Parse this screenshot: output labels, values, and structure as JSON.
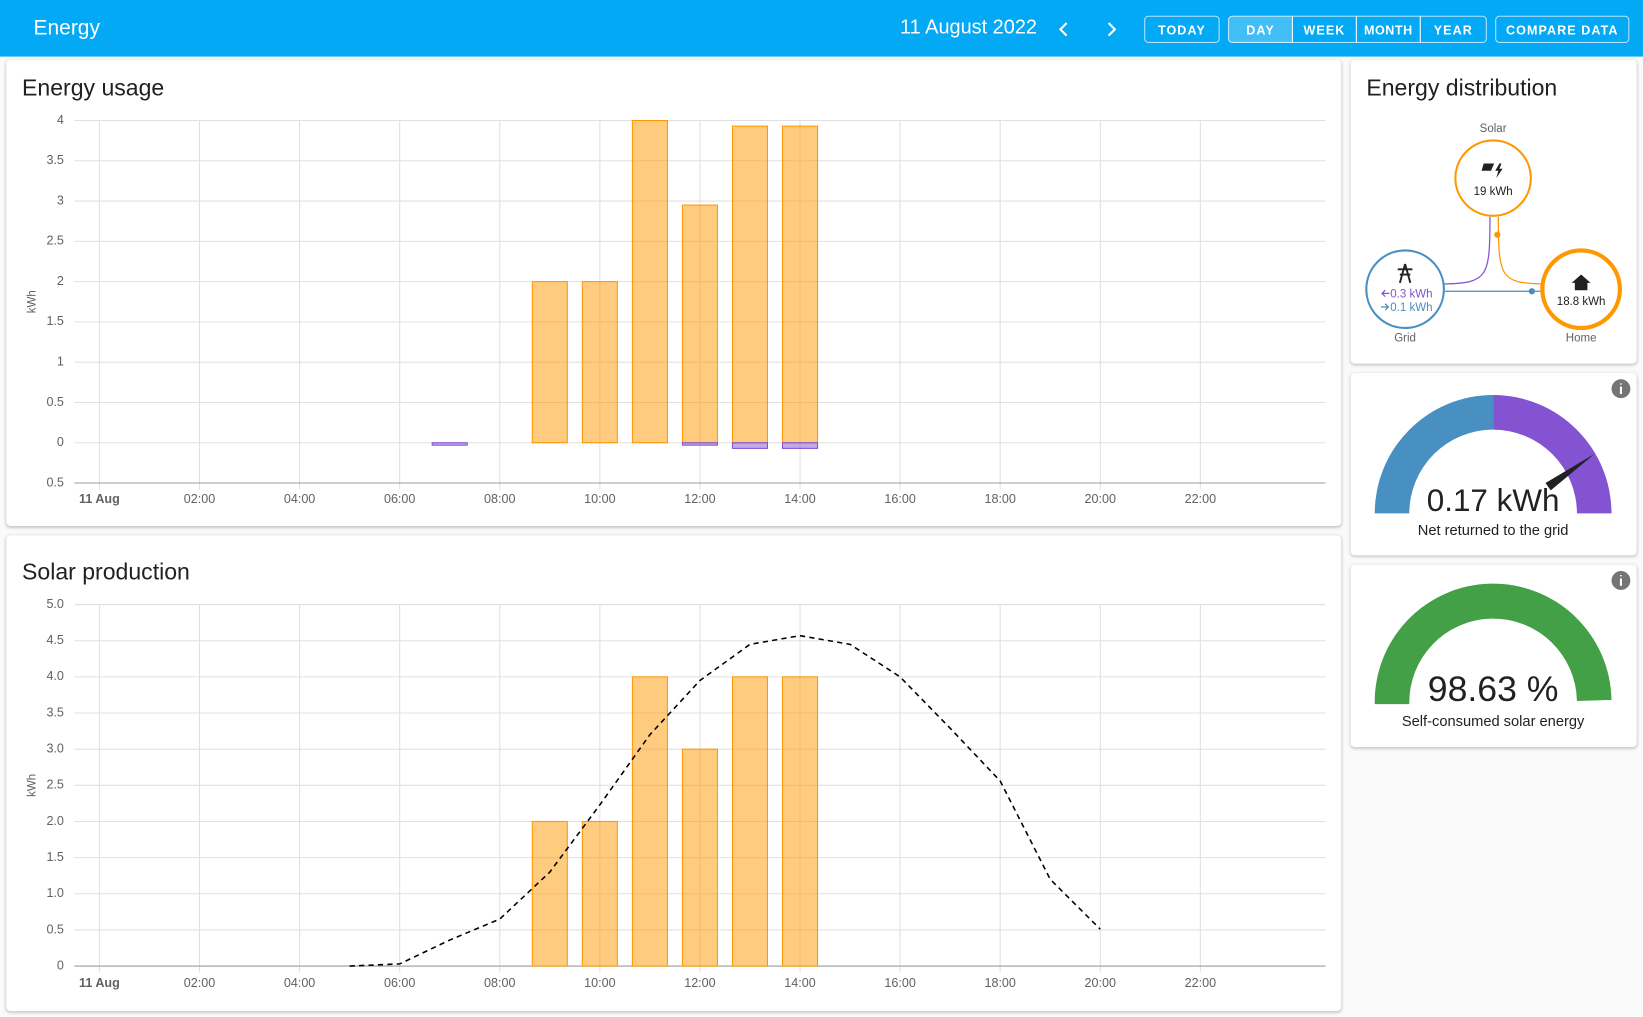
{
  "header": {
    "title": "Energy",
    "date": "11 August 2022",
    "buttons": [
      "TODAY",
      "DAY",
      "WEEK",
      "MONTH",
      "YEAR",
      "COMPARE DATA"
    ]
  },
  "chart_data": [
    {
      "type": "bar",
      "title": "Energy usage",
      "y_label": "kWh",
      "grid": true,
      "x": [
        7,
        9,
        10,
        11,
        12,
        13,
        14
      ],
      "series": [
        {
          "color": "#ff9800",
          "values": [
            0,
            2,
            2,
            4,
            2.95,
            3.93,
            3.93
          ]
        },
        {
          "color": "#8353d1",
          "values": [
            -0.03,
            0,
            0,
            0,
            -0.03,
            -0.07,
            -0.07
          ]
        }
      ],
      "xlim": [
        -0.5,
        24.5
      ],
      "xticks": [
        {
          "value": 0,
          "label": "11 Aug"
        },
        {
          "value": 2,
          "label": "02:00"
        },
        {
          "value": 4,
          "label": "04:00"
        },
        {
          "value": 6,
          "label": "06:00"
        },
        {
          "value": 8,
          "label": "08:00"
        },
        {
          "value": 10,
          "label": "10:00"
        },
        {
          "value": 12,
          "label": "12:00"
        },
        {
          "value": 14,
          "label": "14:00"
        },
        {
          "value": 16,
          "label": "16:00"
        },
        {
          "value": 18,
          "label": "18:00"
        },
        {
          "value": 20,
          "label": "20:00"
        },
        {
          "value": 22,
          "label": "22:00"
        }
      ],
      "ylim": [
        -0.5,
        4
      ],
      "yticks": [
        {
          "value": -0.5,
          "label": "0.5"
        },
        0,
        0.5,
        1,
        1.5,
        2,
        2.5,
        3,
        3.5,
        4
      ]
    },
    {
      "type": "bar",
      "title": "Solar production",
      "y_label": "kWh",
      "grid": true,
      "x": [
        9,
        10,
        11,
        12,
        13,
        14
      ],
      "series": [
        {
          "color": "#ff9800",
          "values": [
            2,
            2,
            4,
            3,
            4,
            4
          ]
        },
        {
          "type": "line",
          "color": "#000000",
          "dashed": true,
          "x": [
            5,
            6,
            7,
            8,
            9,
            10,
            11,
            12,
            13,
            14,
            15,
            16,
            17,
            18,
            19,
            20
          ],
          "values": [
            0,
            0.03,
            0.36,
            0.65,
            1.3,
            2.23,
            3.2,
            3.95,
            4.45,
            4.57,
            4.45,
            4.0,
            3.29,
            2.56,
            1.2,
            0.51
          ]
        }
      ],
      "xlim": [
        -0.5,
        24.5
      ],
      "xticks": [
        {
          "value": 0,
          "label": "11 Aug"
        },
        {
          "value": 2,
          "label": "02:00"
        },
        {
          "value": 4,
          "label": "04:00"
        },
        {
          "value": 6,
          "label": "06:00"
        },
        {
          "value": 8,
          "label": "08:00"
        },
        {
          "value": 10,
          "label": "10:00"
        },
        {
          "value": 12,
          "label": "12:00"
        },
        {
          "value": 14,
          "label": "14:00"
        },
        {
          "value": 16,
          "label": "16:00"
        },
        {
          "value": 18,
          "label": "18:00"
        },
        {
          "value": 20,
          "label": "20:00"
        },
        {
          "value": 22,
          "label": "22:00"
        }
      ],
      "ylim": [
        0,
        5
      ],
      "yticks": [
        0,
        0.5,
        {
          "value": 1,
          "label": "1.0"
        },
        1.5,
        {
          "value": 2,
          "label": "2.0"
        },
        2.5,
        {
          "value": 3,
          "label": "3.0"
        },
        3.5,
        {
          "value": 4,
          "label": "4.0"
        },
        4.5,
        {
          "value": 5,
          "label": "5.0"
        }
      ]
    }
  ],
  "distribution": {
    "title": "Energy distribution",
    "solar": {
      "label": "Solar",
      "value": "19 kWh"
    },
    "grid": {
      "label": "Grid",
      "returned": "0.3 kWh",
      "consumed": "0.1 kWh"
    },
    "home": {
      "label": "Home",
      "value": "18.8 kWh"
    }
  },
  "gauges": [
    {
      "value": "0.17 kWh",
      "label": "Net returned to the grid"
    },
    {
      "value": "98.63 %",
      "label": "Self-consumed solar energy"
    }
  ]
}
